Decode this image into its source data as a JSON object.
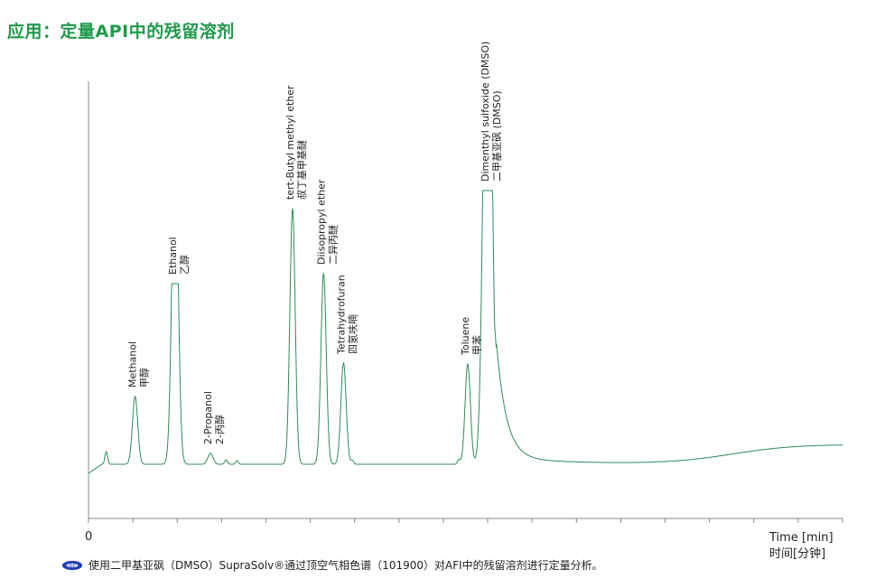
{
  "title": "应用：定量API中的残留溶剂",
  "caption": "使用二甲基亚砜（DMSO）SupraSolv®通过顶空气相色谱（101900）对AFI中的残留溶剂进行定量分析。",
  "colors": {
    "title": "#1f9a4b",
    "trace": "#2e8b57",
    "axis": "#888888",
    "logo": "#1f3fb5"
  },
  "chart_data": {
    "type": "line",
    "x_axis": {
      "label_en": "Time [min]",
      "label_zh": "时间[分钟]",
      "tick_labels": [
        "0"
      ],
      "xlim": [
        0,
        17
      ],
      "minor_ticks": 17
    },
    "peaks": [
      {
        "name_en": "Methanol",
        "name_zh": "甲醇",
        "time": 1.05,
        "height": 75
      },
      {
        "name_en": "Ethanol",
        "name_zh": "乙醇",
        "time": 1.95,
        "height": 200
      },
      {
        "name_en": "2-Propanol",
        "name_zh": "2-丙醇",
        "time": 2.75,
        "height": 12
      },
      {
        "name_en": "tert-Butyl methyl ether",
        "name_zh": "叔丁基甲基醚",
        "time": 4.6,
        "height": 283
      },
      {
        "name_en": "Diisopropyl ether",
        "name_zh": "二异丙醚",
        "time": 5.3,
        "height": 211
      },
      {
        "name_en": "Tetrahydrofuran",
        "name_zh": "四氢呋喃",
        "time": 5.75,
        "height": 112
      },
      {
        "name_en": "Toluene",
        "name_zh": "甲苯",
        "time": 8.55,
        "height": 111
      },
      {
        "name_en": "Dimenthyl sulfoxide (DMSO)",
        "name_zh": "二甲基亚砜 (DMSO)",
        "time": 9.0,
        "height": 303
      }
    ]
  }
}
